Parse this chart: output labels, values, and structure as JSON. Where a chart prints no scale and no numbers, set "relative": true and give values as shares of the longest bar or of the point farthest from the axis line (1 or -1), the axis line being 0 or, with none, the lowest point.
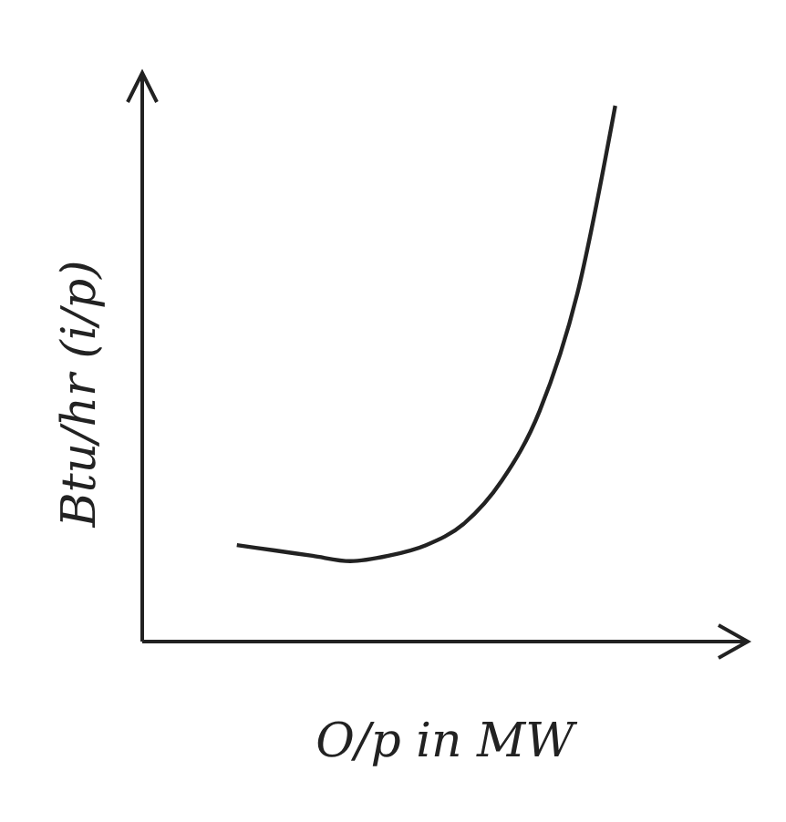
{
  "chart_data": {
    "type": "line",
    "relative": true,
    "xlabel": "O/p in MW",
    "ylabel": "Btu/hr (i/p)",
    "categories": [
      null,
      null,
      null,
      null,
      null,
      null,
      null,
      null,
      null,
      null,
      null,
      null,
      null,
      null,
      null,
      null
    ],
    "series": [
      {
        "color": "#222222",
        "values": [
          null,
          null,
          0.18,
          0.17,
          0.16,
          0.15,
          0.16,
          0.18,
          0.22,
          0.3,
          0.43,
          0.65,
          1.0,
          null,
          null,
          null
        ]
      }
    ]
  }
}
